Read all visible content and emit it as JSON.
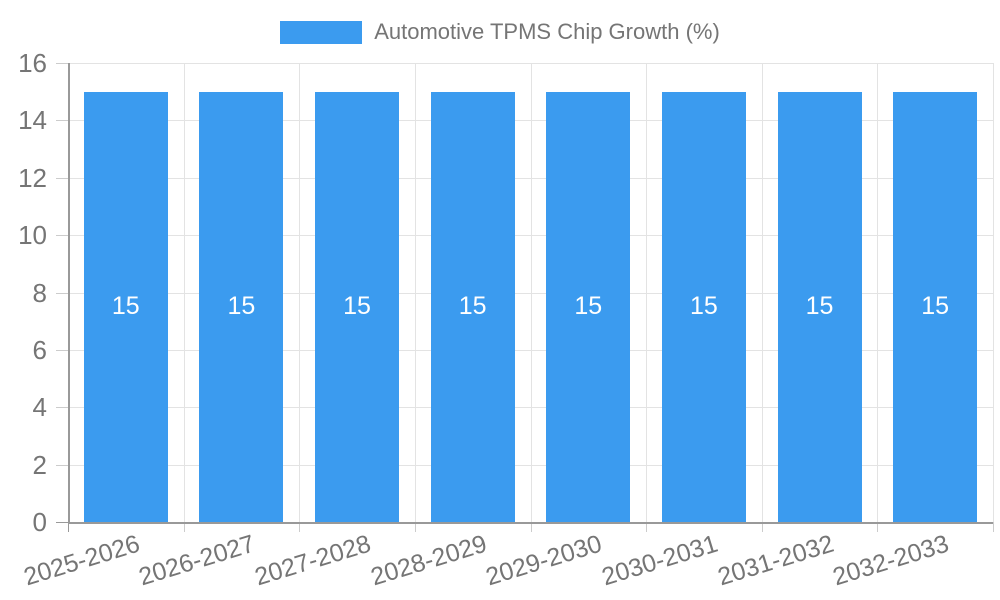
{
  "legend": {
    "label": "Automotive TPMS Chip Growth (%)"
  },
  "chart_data": {
    "type": "bar",
    "title": "",
    "categories": [
      "2025-2026",
      "2026-2027",
      "2027-2028",
      "2028-2029",
      "2029-2030",
      "2030-2031",
      "2031-2032",
      "2032-2033"
    ],
    "series": [
      {
        "name": "Automotive TPMS Chip Growth (%)",
        "values": [
          15,
          15,
          15,
          15,
          15,
          15,
          15,
          15
        ]
      }
    ],
    "bar_value_labels": [
      "15",
      "15",
      "15",
      "15",
      "15",
      "15",
      "15",
      "15"
    ],
    "xlabel": "",
    "ylabel": "",
    "ylim": [
      0,
      16
    ],
    "yticks": [
      0,
      2,
      4,
      6,
      8,
      10,
      12,
      14,
      16
    ],
    "grid": true,
    "legend_position": "top-center",
    "bar_label_position": "inside-middle",
    "colors": {
      "bar": "#3b9bef",
      "bar_label_text": "#ffffff",
      "axis_text": "#757575",
      "legend_text": "#757575",
      "grid_line": "#e3e3e3",
      "tick_line": "#cccccc",
      "axis_line": "#999999",
      "background": "#ffffff"
    }
  }
}
